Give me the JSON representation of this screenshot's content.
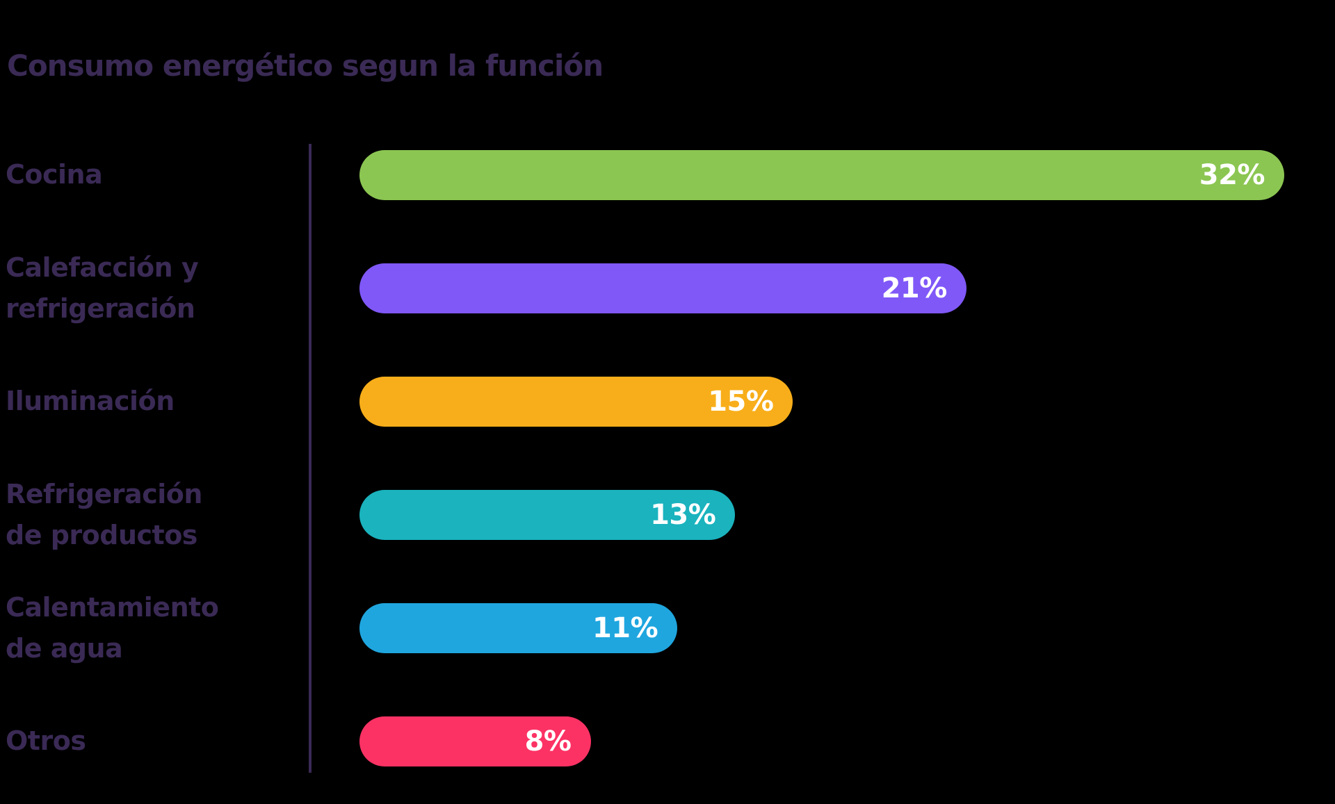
{
  "chart_data": {
    "type": "bar",
    "orientation": "horizontal",
    "title": "Consumo energético segun la función",
    "categories": [
      "Cocina",
      "Calefacción y\nrefrigeración",
      "Iluminación",
      "Refrigeración\nde productos",
      "Calentamiento\nde agua",
      "Otros"
    ],
    "values": [
      32,
      21,
      15,
      13,
      11,
      8
    ],
    "value_labels": [
      "32%",
      "21%",
      "15%",
      "13%",
      "11%",
      "8%"
    ],
    "bar_colors": [
      "#8BC652",
      "#8058F8",
      "#F8AE1A",
      "#1AB3BE",
      "#1FA6DF",
      "#FC3264"
    ],
    "xlim": [
      0,
      32
    ],
    "xlabel": "",
    "ylabel": "",
    "grid": false,
    "legend_position": "none",
    "value_label_position": "inside-end",
    "text_color": "#3A2A55",
    "value_text_color": "#FFFFFF",
    "background_color": "#000000",
    "axis_line_color": "#3A2A55"
  }
}
